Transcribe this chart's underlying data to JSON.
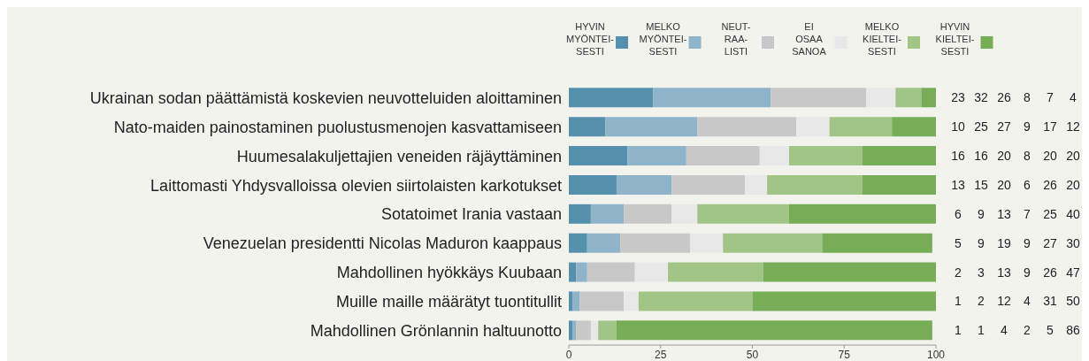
{
  "chart_data": {
    "type": "bar",
    "orientation": "horizontal",
    "stacked": true,
    "categories": [
      "Ukrainan sodan päättämistä koskevien neuvotteluiden aloittaminen",
      "Nato-maiden painostaminen puolustusmenojen kasvattamiseen",
      "Huumesalakuljettajien veneiden räjäyttäminen",
      "Laittomasti Yhdysvalloissa olevien siirtolaisten karkotukset",
      "Sotatoimet Irania vastaan",
      "Venezuelan presidentti Nicolas Maduron kaappaus",
      "Mahdollinen hyökkäys Kuubaan",
      "Muille maille määrätyt tuontitullit",
      "Mahdollinen Grönlannin haltuunotto"
    ],
    "series": [
      {
        "name": "HYVIN\nMYÖNTEI-\nSESTI",
        "color": "#5591ad",
        "values": [
          23,
          10,
          16,
          13,
          6,
          5,
          2,
          1,
          1
        ]
      },
      {
        "name": "MELKO\nMYÖNTEI-\nSESTI",
        "color": "#8fb3c8",
        "values": [
          32,
          25,
          16,
          15,
          9,
          9,
          3,
          2,
          1
        ]
      },
      {
        "name": "NEUT-\nRAA-\nLISTI",
        "color": "#c8c8c8",
        "values": [
          26,
          27,
          20,
          20,
          13,
          19,
          13,
          12,
          4
        ]
      },
      {
        "name": "EI\nOSAA\nSANOA",
        "color": "#e8e8e8",
        "values": [
          8,
          9,
          8,
          6,
          7,
          9,
          9,
          4,
          2
        ]
      },
      {
        "name": "MELKO\nKIELTEI-\nSESTI",
        "color": "#a0c587",
        "values": [
          7,
          17,
          20,
          26,
          25,
          27,
          26,
          31,
          5
        ]
      },
      {
        "name": "HYVIN\nKIELTEI-\nSESTI",
        "color": "#76ad56",
        "values": [
          4,
          12,
          20,
          20,
          40,
          30,
          47,
          50,
          86
        ]
      }
    ],
    "xlim": [
      0,
      100
    ],
    "xticks": [
      0,
      25,
      50,
      75,
      100
    ],
    "grid": false,
    "legend": "top right",
    "data_labels": true
  }
}
